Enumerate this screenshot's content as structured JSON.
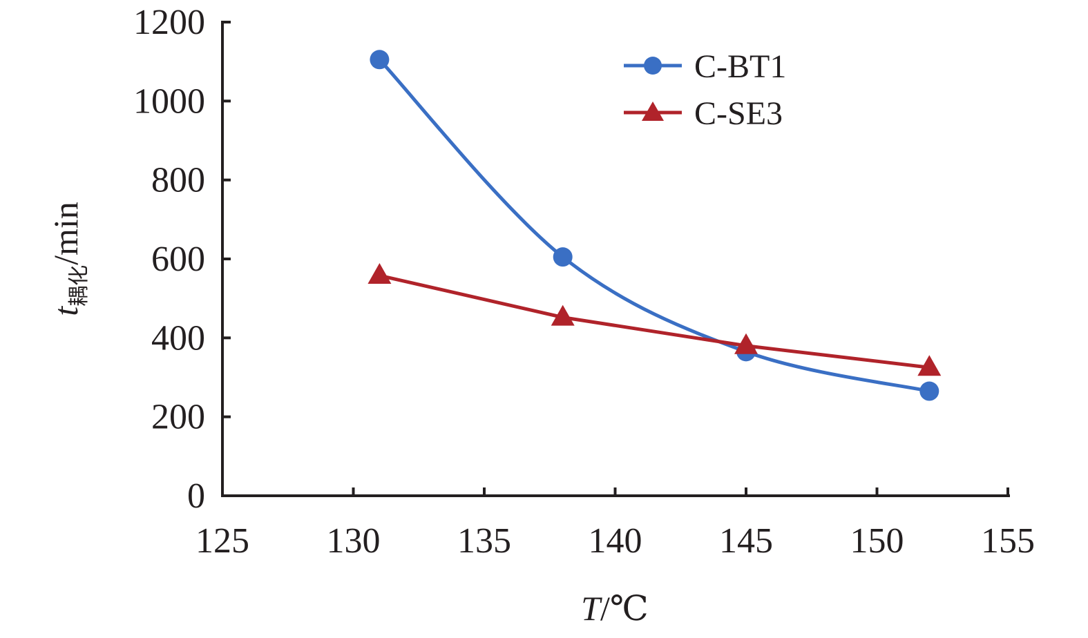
{
  "chart_data": {
    "type": "line",
    "xlabel": {
      "var": "T",
      "unit": "/℃"
    },
    "ylabel": {
      "var": "t",
      "sub": "耦化",
      "unit": "/min"
    },
    "xlim": [
      125,
      155
    ],
    "ylim": [
      0,
      1200
    ],
    "xticks": [
      "125",
      "130",
      "135",
      "140",
      "145",
      "150",
      "155"
    ],
    "yticks": [
      "0",
      "200",
      "400",
      "600",
      "800",
      "1000",
      "1200"
    ],
    "legend_position": "top-right",
    "grid": false,
    "series": [
      {
        "name": "C-BT1",
        "color": "#3a6fc4",
        "marker": "circle",
        "smooth": true,
        "x": [
          131,
          138,
          145,
          152
        ],
        "y": [
          1105,
          605,
          365,
          265
        ]
      },
      {
        "name": "C-SE3",
        "color": "#b0232a",
        "marker": "triangle",
        "smooth": false,
        "x": [
          131,
          138,
          145,
          152
        ],
        "y": [
          558,
          452,
          380,
          325
        ]
      }
    ]
  }
}
